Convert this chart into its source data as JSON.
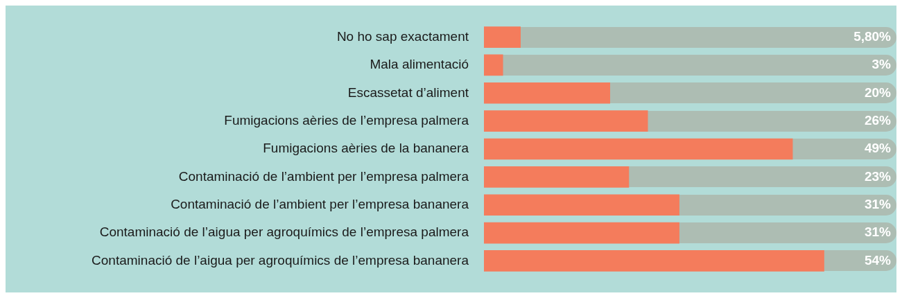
{
  "chart_data": {
    "type": "bar",
    "orientation": "horizontal",
    "tick_labels": "y",
    "categories": [
      "No ho sap exactament",
      "Mala alimentació",
      "Escassetat d’aliment",
      "Fumigacions aèries de l’empresa palmera",
      "Fumigacions aèries de la bananera",
      "Contaminació de l’ambient per l’empresa palmera",
      "Contaminació de l’ambient per l’empresa bananera",
      "Contaminació de l’aigua per agroquímics de l’empresa palmera",
      "Contaminació de l’aigua per agroquímics de l’empresa bananera"
    ],
    "values": [
      5.8,
      3,
      20,
      26,
      49,
      23,
      31,
      31,
      54
    ],
    "value_labels": [
      "5,80%",
      "3%",
      "20%",
      "26%",
      "49%",
      "23%",
      "31%",
      "31%",
      "54%"
    ],
    "color": "#f47c5c",
    "xlim": [
      0,
      65.5
    ]
  }
}
